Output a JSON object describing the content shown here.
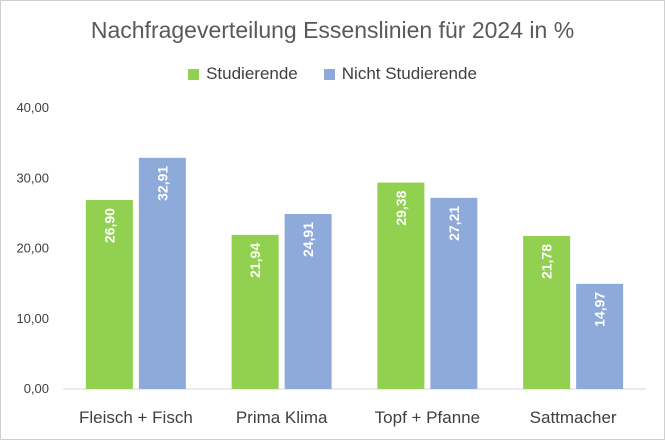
{
  "chart_data": {
    "type": "bar",
    "title": "Nachfrageverteilung Essenslinien für 2024 in %",
    "categories": [
      "Fleisch + Fisch",
      "Prima Klima",
      "Topf + Pfanne",
      "Sattmacher"
    ],
    "series": [
      {
        "name": "Studierende",
        "color": "#92d050",
        "values": [
          26.9,
          21.94,
          29.38,
          21.78
        ],
        "labels": [
          "26,90",
          "21,94",
          "29,38",
          "21,78"
        ]
      },
      {
        "name": "Nicht Studierende",
        "color": "#8eaadb",
        "values": [
          32.91,
          24.91,
          27.21,
          14.97
        ],
        "labels": [
          "32,91",
          "24,91",
          "27,21",
          "14,97"
        ]
      }
    ],
    "ylim": [
      0,
      40
    ],
    "yticks": [
      0,
      10,
      20,
      30,
      40
    ],
    "ytick_labels": [
      "0,00",
      "10,00",
      "20,00",
      "30,00",
      "40,00"
    ],
    "grid": false,
    "legend_position": "top",
    "xlabel": "",
    "ylabel": ""
  }
}
